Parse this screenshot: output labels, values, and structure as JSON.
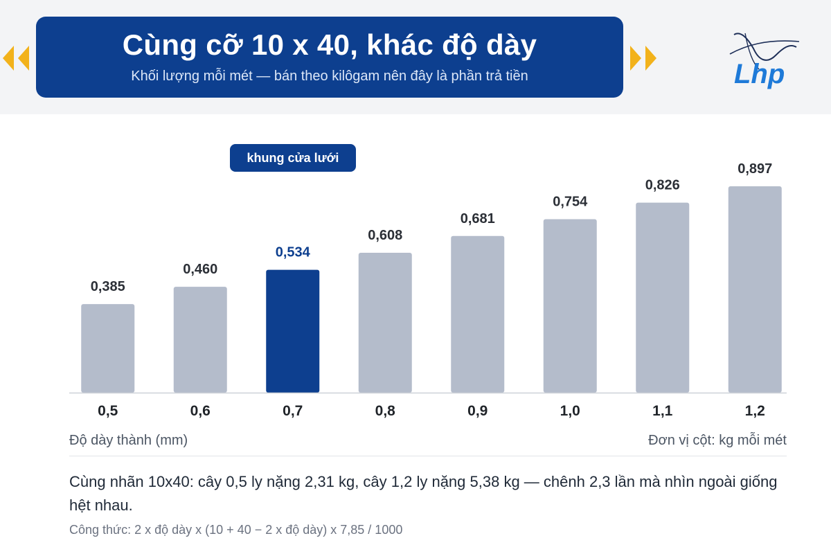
{
  "header": {
    "title": "Cùng cỡ 10 x 40, khác độ dày",
    "subtitle": "Khối lượng mỗi mét — bán theo kilôgam nên đây là phần trả tiền"
  },
  "highlight_label": "khung cửa lưới",
  "chart_data": {
    "type": "bar",
    "categories": [
      "0,5",
      "0,6",
      "0,7",
      "0,8",
      "0,9",
      "1,0",
      "1,1",
      "1,2"
    ],
    "values": [
      0.385,
      0.46,
      0.534,
      0.608,
      0.681,
      0.754,
      0.826,
      0.897
    ],
    "value_labels": [
      "0,385",
      "0,460",
      "0,534",
      "0,608",
      "0,681",
      "0,754",
      "0,826",
      "0,897"
    ],
    "highlight_index": 2,
    "xlabel": "Độ dày thành (mm)",
    "ylabel": "Đơn vị cột: kg mỗi mét",
    "ylim": [
      0,
      1.0
    ],
    "grid": false,
    "colors": {
      "bar": "#b4bccb",
      "highlight": "#0d3f8f",
      "label": "#2b2f36",
      "highlight_label": "#0d3f8f",
      "axis": "#cdd1d8"
    }
  },
  "footer": {
    "note": "Cùng nhãn 10x40: cây 0,5 ly nặng 2,31 kg, cây 1,2 ly nặng 5,38 kg — chênh 2,3 lần mà nhìn ngoài giống hệt nhau.",
    "formula": "Công thức: 2 x độ dày x (10 + 40 − 2 x độ dày) x 7,85 / 1000"
  },
  "icons": {
    "left": "chevron-double-left-icon",
    "right": "chevron-double-right-icon",
    "logo": "lhp-logo"
  },
  "brand": {
    "primary": "#0d3f8f",
    "accent": "#f2b21b",
    "logo_blue": "#1e7ad8"
  }
}
